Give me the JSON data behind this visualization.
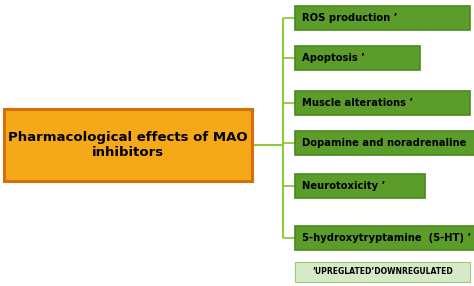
{
  "title": "Pharmacological effects of MAO\ninhibitors",
  "title_box_color": "#F5A818",
  "title_box_edge_color": "#D4700A",
  "title_text_color": "#000000",
  "title_fontsize": 9.5,
  "bg_color": "#FFFFFF",
  "branch_labels": [
    "ROS production ’",
    "Apoptosis ’",
    "Muscle alterations ’",
    "Dopamine and noradrenaline  ’",
    "Neurotoxicity ’",
    "5-hydroxytryptamine  (5-HT) ’"
  ],
  "branch_box_color": "#5B9C2A",
  "branch_box_edge_color": "#4A8A1A",
  "branch_text_color": "#000000",
  "branch_fontsize": 7.2,
  "line_color": "#8FC840",
  "footnote": "’UPREGLATED’DOWNREGULATED",
  "footnote_fontsize": 5.5,
  "footnote_box_color": "#D6EAC8",
  "footnote_box_edge_color": "#9BC870"
}
